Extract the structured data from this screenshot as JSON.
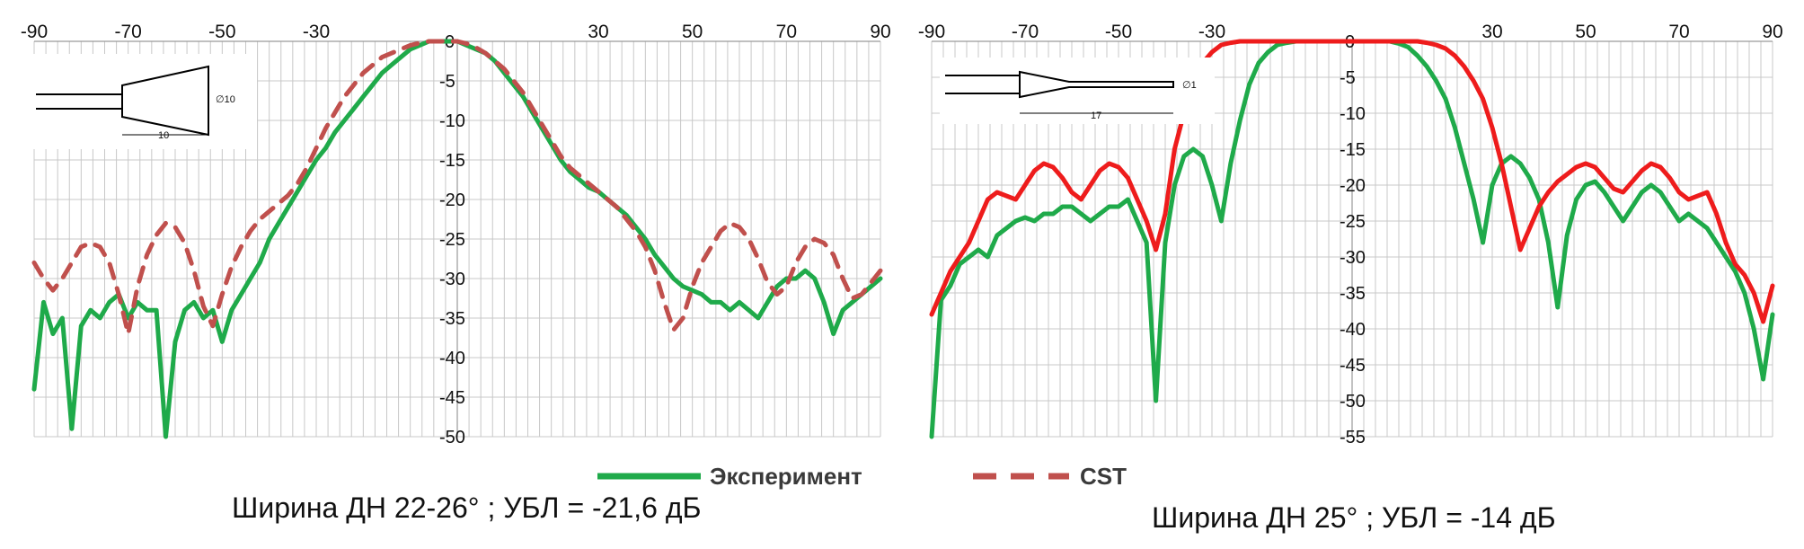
{
  "legend": {
    "experiment_label": "Эксперимент",
    "cst_label": "CST"
  },
  "colors": {
    "experiment": "#1faa4a",
    "cst_left": "#c0504d",
    "cst_right": "#ee1c1c",
    "grid": "#c8c8c8"
  },
  "chart_data": [
    {
      "type": "line",
      "caption": "Ширина ДН 22-26° ; УБЛ = -21,6 дБ",
      "xlabel": "",
      "ylabel": "",
      "xlim": [
        -90,
        90
      ],
      "ylim": [
        -50,
        0
      ],
      "x_ticks": [
        -90,
        -70,
        -50,
        -30,
        30,
        50,
        70,
        90
      ],
      "y_ticks": [
        0,
        -5,
        -10,
        -15,
        -20,
        -25,
        -30,
        -35,
        -40,
        -45,
        -50
      ],
      "grid": true,
      "legend_position": "bottom",
      "inset": "horn-antenna-sketch",
      "inset_labels": [
        "∅10",
        "10"
      ],
      "series": [
        {
          "name": "Эксперимент",
          "style": "solid",
          "x": [
            -90,
            -88,
            -86,
            -84,
            -82,
            -80,
            -78,
            -76,
            -74,
            -72,
            -70,
            -68,
            -66,
            -64,
            -62,
            -60,
            -58,
            -56,
            -54,
            -52,
            -50,
            -48,
            -46,
            -44,
            -42,
            -40,
            -38,
            -36,
            -34,
            -32,
            -30,
            -28,
            -26,
            -24,
            -22,
            -20,
            -18,
            -16,
            -14,
            -12,
            -10,
            -8,
            -6,
            -4,
            -2,
            0,
            2,
            4,
            6,
            8,
            10,
            12,
            14,
            16,
            18,
            20,
            22,
            24,
            26,
            28,
            30,
            32,
            34,
            36,
            38,
            40,
            42,
            44,
            46,
            48,
            50,
            52,
            54,
            56,
            58,
            60,
            62,
            64,
            66,
            68,
            70,
            72,
            74,
            76,
            78,
            80,
            82,
            84,
            86,
            88,
            90
          ],
          "y": [
            -44,
            -33,
            -37,
            -35,
            -49,
            -36,
            -34,
            -35,
            -33,
            -32,
            -35,
            -33,
            -34,
            -34,
            -50,
            -38,
            -34,
            -33,
            -35,
            -34,
            -38,
            -34,
            -32,
            -30,
            -28,
            -25,
            -23,
            -21,
            -19,
            -17,
            -15,
            -13.5,
            -11.5,
            -10,
            -8.5,
            -7,
            -5.5,
            -4,
            -3,
            -2,
            -1,
            -0.5,
            0,
            0,
            0,
            0,
            -0.5,
            -1,
            -1.5,
            -2.5,
            -4,
            -5.5,
            -7,
            -9,
            -11,
            -13,
            -15,
            -16.5,
            -17.5,
            -18.5,
            -19,
            -20,
            -21,
            -22,
            -23.5,
            -25,
            -27,
            -28.5,
            -30,
            -31,
            -31.5,
            -32,
            -33,
            -33,
            -34,
            -33,
            -34,
            -35,
            -33,
            -31,
            -30,
            -30,
            -29,
            -30,
            -33,
            -37,
            -34,
            -33,
            -32,
            -31,
            -30
          ]
        },
        {
          "name": "CST",
          "style": "dashed",
          "x": [
            -90,
            -88,
            -86,
            -84,
            -82,
            -80,
            -78,
            -76,
            -74,
            -72,
            -70,
            -68,
            -66,
            -64,
            -62,
            -60,
            -58,
            -56,
            -54,
            -52,
            -50,
            -48,
            -46,
            -44,
            -42,
            -40,
            -38,
            -36,
            -34,
            -32,
            -30,
            -28,
            -26,
            -24,
            -22,
            -20,
            -18,
            -16,
            -14,
            -12,
            -10,
            -8,
            -6,
            -4,
            -2,
            0,
            2,
            4,
            6,
            8,
            10,
            12,
            14,
            16,
            18,
            20,
            22,
            24,
            26,
            28,
            30,
            32,
            34,
            36,
            38,
            40,
            42,
            44,
            46,
            48,
            50,
            52,
            54,
            56,
            58,
            60,
            62,
            64,
            66,
            68,
            70,
            72,
            74,
            76,
            78,
            80,
            82,
            84,
            86,
            88,
            90
          ],
          "y": [
            -28,
            -30,
            -31.5,
            -30,
            -28,
            -26,
            -25.5,
            -26,
            -28,
            -32,
            -37,
            -31,
            -27,
            -24.5,
            -23,
            -23.5,
            -25.5,
            -29,
            -33.5,
            -36,
            -32,
            -28.5,
            -26,
            -24,
            -22.5,
            -21.5,
            -20.5,
            -19.5,
            -18,
            -16,
            -13.5,
            -11,
            -9,
            -7,
            -5.5,
            -4,
            -3,
            -2,
            -1.5,
            -1,
            -0.5,
            -0.2,
            0,
            0,
            0,
            0,
            -0.3,
            -0.8,
            -1.5,
            -2.5,
            -3.5,
            -5,
            -6.5,
            -8.5,
            -10.5,
            -12.5,
            -14.5,
            -16,
            -17,
            -18,
            -19,
            -20,
            -21,
            -22.5,
            -24,
            -26,
            -29,
            -33,
            -36.5,
            -35,
            -31,
            -28,
            -26,
            -24,
            -23,
            -23.5,
            -25,
            -27.5,
            -30.5,
            -32,
            -31,
            -28,
            -26,
            -25,
            -25.5,
            -27,
            -30,
            -32.5,
            -32,
            -30.5,
            -29
          ]
        }
      ]
    },
    {
      "type": "line",
      "caption": "Ширина ДН 25° ; УБЛ = -14 дБ",
      "xlabel": "",
      "ylabel": "",
      "xlim": [
        -90,
        90
      ],
      "ylim": [
        -55,
        0
      ],
      "x_ticks": [
        -90,
        -70,
        -50,
        -30,
        30,
        50,
        70,
        90
      ],
      "y_ticks": [
        0,
        -5,
        -10,
        -15,
        -20,
        -25,
        -30,
        -35,
        -40,
        -45,
        -50,
        -55
      ],
      "grid": true,
      "legend_position": "bottom",
      "inset": "tapered-rod-antenna-sketch",
      "inset_labels": [
        "∅1",
        "17"
      ],
      "series": [
        {
          "name": "Эксперимент",
          "style": "solid",
          "x": [
            -90,
            -88,
            -86,
            -84,
            -82,
            -80,
            -78,
            -76,
            -74,
            -72,
            -70,
            -68,
            -66,
            -64,
            -62,
            -60,
            -58,
            -56,
            -54,
            -52,
            -50,
            -48,
            -46,
            -44,
            -42,
            -40,
            -38,
            -36,
            -34,
            -32,
            -30,
            -28,
            -26,
            -24,
            -22,
            -20,
            -18,
            -16,
            -14,
            -12,
            -10,
            -8,
            -6,
            -4,
            -2,
            0,
            2,
            4,
            6,
            8,
            10,
            12,
            14,
            16,
            18,
            20,
            22,
            24,
            26,
            28,
            30,
            32,
            34,
            36,
            38,
            40,
            42,
            44,
            46,
            48,
            50,
            52,
            54,
            56,
            58,
            60,
            62,
            64,
            66,
            68,
            70,
            72,
            74,
            76,
            78,
            80,
            82,
            84,
            86,
            88,
            90
          ],
          "y": [
            -55,
            -36,
            -34,
            -31,
            -30,
            -29,
            -30,
            -27,
            -26,
            -25,
            -24.5,
            -25,
            -24,
            -24,
            -23,
            -23,
            -24,
            -25,
            -24,
            -23,
            -23,
            -22,
            -25,
            -28,
            -50,
            -28,
            -20,
            -16,
            -15,
            -16,
            -20,
            -25,
            -17,
            -11,
            -6,
            -3,
            -1.5,
            -0.5,
            -0.2,
            0,
            0,
            0,
            0,
            0,
            0,
            0,
            0,
            0,
            0,
            0,
            -0.3,
            -0.8,
            -2,
            -3.5,
            -5.5,
            -8,
            -12,
            -17,
            -22,
            -28,
            -20,
            -17,
            -16,
            -17,
            -19,
            -22,
            -28,
            -37,
            -27,
            -22,
            -20,
            -19.5,
            -21,
            -23,
            -25,
            -23,
            -21,
            -20,
            -21,
            -23,
            -25,
            -24,
            -25,
            -26,
            -28,
            -30,
            -32,
            -35,
            -40,
            -47,
            -38
          ]
        },
        {
          "name": "CST",
          "style": "solid",
          "x": [
            -90,
            -88,
            -86,
            -84,
            -82,
            -80,
            -78,
            -76,
            -74,
            -72,
            -70,
            -68,
            -66,
            -64,
            -62,
            -60,
            -58,
            -56,
            -54,
            -52,
            -50,
            -48,
            -46,
            -44,
            -42,
            -40,
            -38,
            -36,
            -34,
            -32,
            -30,
            -28,
            -26,
            -24,
            -22,
            -20,
            -18,
            -16,
            -14,
            -12,
            -10,
            -8,
            -6,
            -4,
            -2,
            0,
            2,
            4,
            6,
            8,
            10,
            12,
            14,
            16,
            18,
            20,
            22,
            24,
            26,
            28,
            30,
            32,
            34,
            36,
            38,
            40,
            42,
            44,
            46,
            48,
            50,
            52,
            54,
            56,
            58,
            60,
            62,
            64,
            66,
            68,
            70,
            72,
            74,
            76,
            78,
            80,
            82,
            84,
            86,
            88,
            90
          ],
          "y": [
            -38,
            -35,
            -32,
            -30,
            -28,
            -25,
            -22,
            -21,
            -21.5,
            -22,
            -20,
            -18,
            -17,
            -17.5,
            -19,
            -21,
            -22,
            -20,
            -18,
            -17,
            -17.5,
            -19,
            -22,
            -25,
            -29,
            -24,
            -15,
            -10,
            -6,
            -3,
            -1.5,
            -0.5,
            -0.2,
            0,
            0,
            0,
            0,
            0,
            0,
            0,
            0,
            0,
            0,
            0,
            0,
            0,
            0,
            0,
            0,
            0,
            0,
            0,
            0,
            -0.2,
            -0.5,
            -1,
            -2,
            -3.5,
            -5.5,
            -8,
            -12,
            -17,
            -23,
            -29,
            -26,
            -23,
            -21,
            -19.5,
            -18.5,
            -17.5,
            -17,
            -17.5,
            -19,
            -20.5,
            -21,
            -19.5,
            -18,
            -17,
            -17.5,
            -19,
            -21,
            -22,
            -21.5,
            -21,
            -24,
            -28,
            -31,
            -32.5,
            -35,
            -39,
            -34
          ]
        }
      ]
    }
  ]
}
